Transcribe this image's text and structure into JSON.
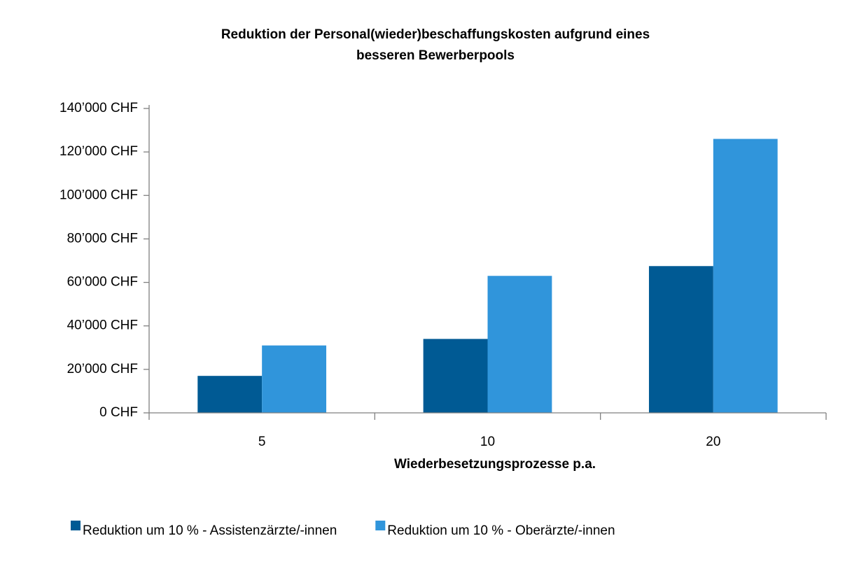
{
  "chart_data": {
    "type": "bar",
    "title": [
      "Reduktion der Personal(wieder)beschaffungskosten aufgrund eines",
      "besseren Bewerberpools"
    ],
    "x_label": "Wiederbesetzungsprozesse p.a.",
    "categories": [
      "5",
      "10",
      "20"
    ],
    "series": [
      {
        "name": "Reduktion um 10 % - Assistenzärzte/-innen",
        "color": "#005a94",
        "values": [
          17000,
          34000,
          67500
        ]
      },
      {
        "name": "Reduktion um 10 % - Oberärzte/-innen",
        "color": "#3095db",
        "values": [
          31000,
          63000,
          126000
        ]
      }
    ],
    "ylim": [
      0,
      140000
    ],
    "yticks": [
      {
        "value": 0,
        "label": "0 CHF"
      },
      {
        "value": 20000,
        "label": "20’000 CHF"
      },
      {
        "value": 40000,
        "label": "40’000 CHF"
      },
      {
        "value": 60000,
        "label": "60’000 CHF"
      },
      {
        "value": 80000,
        "label": "80’000 CHF"
      },
      {
        "value": 100000,
        "label": "100’000 CHF"
      },
      {
        "value": 120000,
        "label": "120’000 CHF"
      },
      {
        "value": 140000,
        "label": "140’000 CHF"
      }
    ],
    "grid": false,
    "legend": "bottom"
  }
}
